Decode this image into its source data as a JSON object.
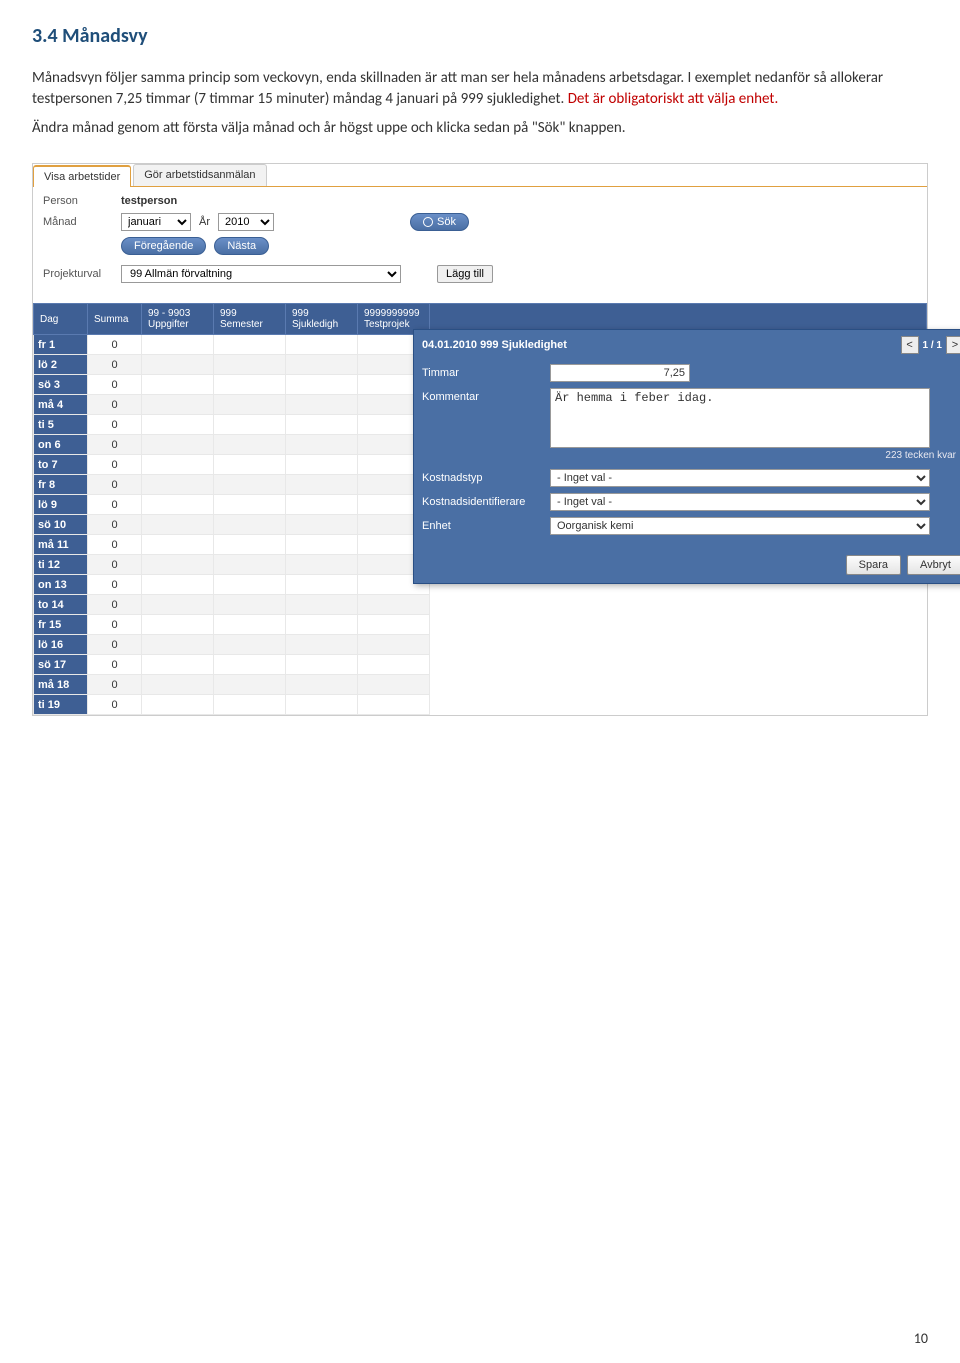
{
  "page": {
    "heading": "3.4 Månadsvy",
    "para1": "Månadsvyn följer samma princip som veckovyn, enda skillnaden är att man ser hela månadens arbetsdagar. I exemplet nedanför så allokerar testpersonen 7,25 timmar (7 timmar 15 minuter) måndag 4 januari på 999 sjukledighet. ",
    "para1_red": "Det är obligatoriskt att välja enhet.",
    "para2": "Ändra månad genom att första välja månad och år högst uppe och klicka sedan på \"Sök\" knappen.",
    "page_number": "10"
  },
  "tabs": {
    "active": "Visa arbetstider",
    "other": "Gör arbetstidsanmälan"
  },
  "filters": {
    "person_label": "Person",
    "person_value": "testperson",
    "month_label": "Månad",
    "month_value": "januari",
    "year_label": "År",
    "year_value": "2010",
    "search_btn": "Sök",
    "prev_btn": "Föregående",
    "next_btn": "Nästa",
    "project_label": "Projekturval",
    "project_value": "99 Allmän förvaltning",
    "add_btn": "Lägg till"
  },
  "columns": [
    {
      "line1": "Dag",
      "line2": ""
    },
    {
      "line1": "Summa",
      "line2": ""
    },
    {
      "line1": "99 - 9903",
      "line2": "Uppgifter"
    },
    {
      "line1": "999",
      "line2": "Semester"
    },
    {
      "line1": "999",
      "line2": "Sjukledigh"
    },
    {
      "line1": "9999999999",
      "line2": "Testprojek"
    }
  ],
  "rows": [
    {
      "day": "fr 1",
      "sum": "0"
    },
    {
      "day": "lö 2",
      "sum": "0"
    },
    {
      "day": "sö 3",
      "sum": "0"
    },
    {
      "day": "må 4",
      "sum": "0"
    },
    {
      "day": "ti 5",
      "sum": "0"
    },
    {
      "day": "on 6",
      "sum": "0"
    },
    {
      "day": "to 7",
      "sum": "0"
    },
    {
      "day": "fr 8",
      "sum": "0"
    },
    {
      "day": "lö 9",
      "sum": "0"
    },
    {
      "day": "sö 10",
      "sum": "0"
    },
    {
      "day": "må 11",
      "sum": "0"
    },
    {
      "day": "ti 12",
      "sum": "0"
    },
    {
      "day": "on 13",
      "sum": "0"
    },
    {
      "day": "to 14",
      "sum": "0"
    },
    {
      "day": "fr 15",
      "sum": "0"
    },
    {
      "day": "lö 16",
      "sum": "0"
    },
    {
      "day": "sö 17",
      "sum": "0"
    },
    {
      "day": "må 18",
      "sum": "0"
    },
    {
      "day": "ti 19",
      "sum": "0"
    }
  ],
  "popup": {
    "title": "04.01.2010  999 Sjukledighet",
    "nav_prev": "<",
    "nav_pos": "1 / 1",
    "nav_next": ">",
    "hours_label": "Timmar",
    "hours_value": "7,25",
    "comment_label": "Kommentar",
    "comment_value": "Är hemma i feber idag.",
    "chars_left": "223 tecken kvar",
    "cost_type_label": "Kostnadstyp",
    "cost_type_value": "- Inget val -",
    "cost_id_label": "Kostnadsidentifierare",
    "cost_id_value": "- Inget val -",
    "unit_label": "Enhet",
    "unit_value": "Oorganisk kemi",
    "save_btn": "Spara",
    "cancel_btn": "Avbryt"
  }
}
